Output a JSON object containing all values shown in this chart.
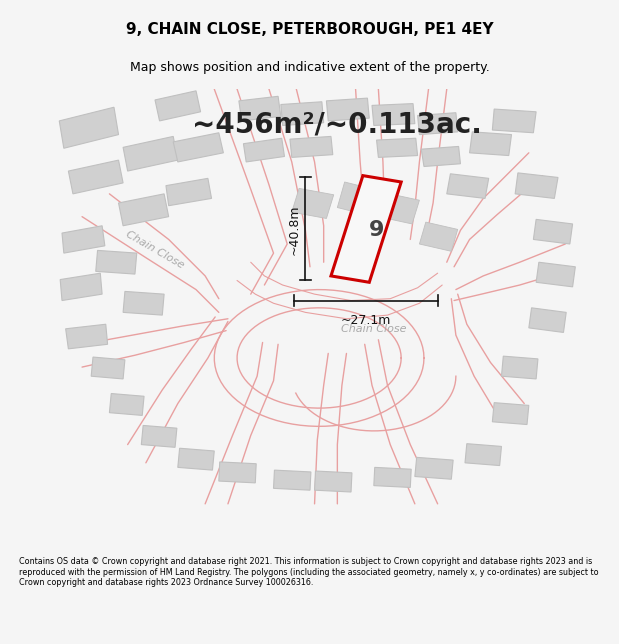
{
  "title": "9, CHAIN CLOSE, PETERBOROUGH, PE1 4EY",
  "subtitle": "Map shows position and indicative extent of the property.",
  "area_text": "~456m²/~0.113ac.",
  "height_label": "~40.8m",
  "width_label": "~27.1m",
  "street_label_left": "Chain Close",
  "street_label_bottom": "Chain Close",
  "plot_number": "9",
  "footer": "Contains OS data © Crown copyright and database right 2021. This information is subject to Crown copyright and database rights 2023 and is reproduced with the permission of HM Land Registry. The polygons (including the associated geometry, namely x, y co-ordinates) are subject to Crown copyright and database rights 2023 Ordnance Survey 100026316.",
  "bg_color": "#f5f5f5",
  "map_bg_color": "#ffffff",
  "highlight_color": "#cc0000",
  "road_line_color": "#e8a0a0",
  "building_color": "#d0d0d0",
  "building_stroke": "#c0c0c0",
  "dim_line_color": "#111111",
  "text_color": "#555555"
}
